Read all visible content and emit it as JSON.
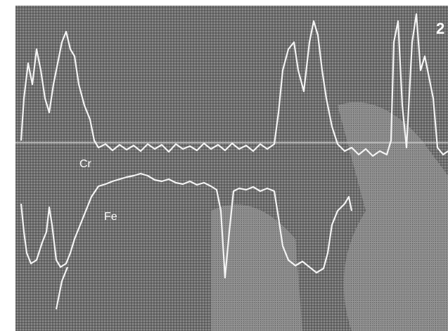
{
  "labels": {
    "figure_number": "2",
    "cr": "Cr",
    "fe": "Fe"
  }
}
